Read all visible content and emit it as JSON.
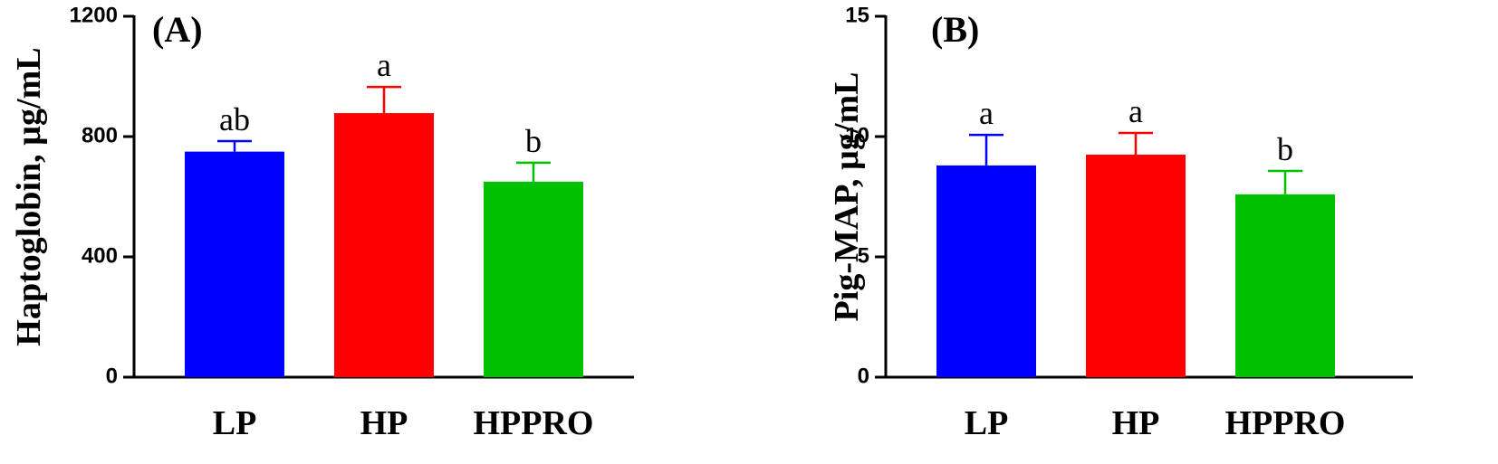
{
  "chart_data": [
    {
      "type": "bar",
      "panel_label": "(A)",
      "ylabel": "Haptoglobin, µg/mL",
      "categories": [
        "LP",
        "HP",
        "HPPRO"
      ],
      "values": [
        750,
        878,
        650
      ],
      "errors": [
        35,
        87,
        63
      ],
      "annotations": [
        "ab",
        "a",
        "b"
      ],
      "colors": [
        "#0000ff",
        "#ff0000",
        "#00c000"
      ],
      "ylim": [
        0,
        1200
      ],
      "yticks": [
        0,
        400,
        800,
        1200
      ]
    },
    {
      "type": "bar",
      "panel_label": "(B)",
      "ylabel": "Pig-MAP, µg/mL",
      "categories": [
        "LP",
        "HP",
        "HPPRO"
      ],
      "values": [
        8.8,
        9.25,
        7.6
      ],
      "errors": [
        1.27,
        0.9,
        0.97
      ],
      "annotations": [
        "a",
        "a",
        "b"
      ],
      "colors": [
        "#0000ff",
        "#ff0000",
        "#00c000"
      ],
      "ylim": [
        0,
        15
      ],
      "yticks": [
        0,
        5,
        10,
        15
      ]
    }
  ]
}
